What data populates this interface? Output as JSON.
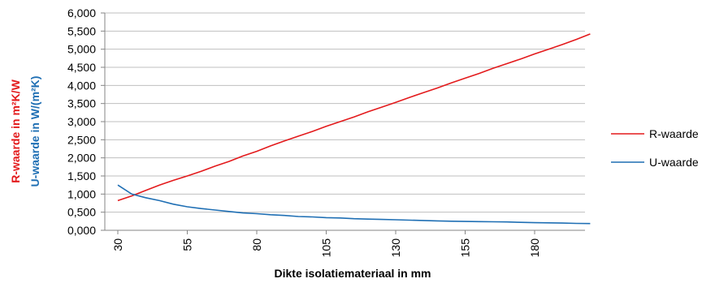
{
  "chart_data": {
    "type": "line",
    "xlabel": "Dikte isolatiemateriaal  in mm",
    "ylabel_r": "R-waarde in m²K/W",
    "ylabel_u": "U-waarde in W/(m²K)",
    "ylim": [
      0,
      6
    ],
    "xlim": [
      30,
      203
    ],
    "yticks": [
      "0,000",
      "0,500",
      "1,000",
      "1,500",
      "2,000",
      "2,500",
      "3,000",
      "3,500",
      "4,000",
      "4,500",
      "5,000",
      "5,500",
      "6,000"
    ],
    "xticks": [
      "30",
      "55",
      "80",
      "105",
      "130",
      "155",
      "180"
    ],
    "grid": "horizontal",
    "legend_position": "right",
    "x": [
      30,
      35,
      40,
      45,
      50,
      55,
      60,
      65,
      70,
      75,
      80,
      85,
      90,
      95,
      100,
      105,
      110,
      115,
      120,
      125,
      130,
      135,
      140,
      145,
      150,
      155,
      160,
      165,
      170,
      175,
      180,
      185,
      190,
      195,
      200
    ],
    "series": [
      {
        "name": "R-waarde",
        "color": "#e31a1c",
        "values": [
          0.82,
          0.95,
          1.1,
          1.25,
          1.38,
          1.5,
          1.63,
          1.77,
          1.9,
          2.05,
          2.18,
          2.33,
          2.47,
          2.6,
          2.73,
          2.87,
          3.0,
          3.13,
          3.27,
          3.4,
          3.53,
          3.67,
          3.8,
          3.93,
          4.07,
          4.2,
          4.33,
          4.47,
          4.6,
          4.73,
          4.87,
          5.0,
          5.13,
          5.27,
          5.42
        ]
      },
      {
        "name": "U-waarde",
        "color": "#1f6fb4",
        "values": [
          1.25,
          1.0,
          0.9,
          0.82,
          0.72,
          0.65,
          0.6,
          0.56,
          0.52,
          0.48,
          0.46,
          0.43,
          0.41,
          0.38,
          0.37,
          0.35,
          0.34,
          0.32,
          0.31,
          0.3,
          0.29,
          0.28,
          0.27,
          0.26,
          0.25,
          0.245,
          0.24,
          0.235,
          0.23,
          0.22,
          0.21,
          0.205,
          0.2,
          0.19,
          0.185
        ]
      }
    ]
  }
}
